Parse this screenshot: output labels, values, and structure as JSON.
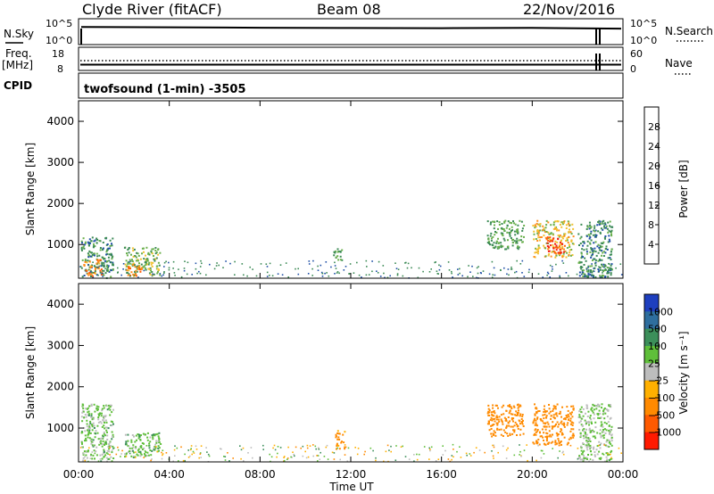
{
  "header": {
    "station": "Clyde River (fitACF)",
    "beam": "Beam 08",
    "date": "22/Nov/2016"
  },
  "summary": {
    "nsky_label": "N.Sky",
    "nsky_ticks": [
      "10^5",
      "10^0"
    ],
    "nsearch_label": "N.Search",
    "nsearch_ticks": [
      "10^5",
      "10^0"
    ],
    "freq_label_1": "Freq.",
    "freq_label_2": "[MHz]",
    "freq_ticks": [
      "18",
      "8"
    ],
    "nave_label": "Nave",
    "nave_ticks": [
      "60",
      "0"
    ],
    "cpid_label": "CPID",
    "cpid_value": "twofsound (1-min) -3505"
  },
  "axes": {
    "xlabel": "Time UT",
    "ylabel": "Slant Range [km]",
    "x_ticks": [
      "00:00",
      "04:00",
      "08:00",
      "12:00",
      "16:00",
      "20:00",
      "00:00"
    ],
    "y_ticks": [
      "1000",
      "2000",
      "3000",
      "4000"
    ]
  },
  "colorbars": {
    "power": {
      "title": "Power [dB]",
      "labels": [
        "4",
        "8",
        "12",
        "16",
        "20",
        "24",
        "28"
      ],
      "colors": [
        "#0033ff",
        "#1f4fa6",
        "#3b8a55",
        "#6ab04c",
        "#f2c230",
        "#ff8c1a",
        "#ff5a00",
        "#f21d10"
      ]
    },
    "velocity": {
      "title": "Velocity [m s⁻¹]",
      "labels": [
        "1000",
        "500",
        "100",
        "25",
        "−25",
        "−100",
        "−500",
        "−1000"
      ],
      "colors": [
        "#1e3fbf",
        "#2e6e9e",
        "#3c8f5a",
        "#5fbf3a",
        "#bdbdbd",
        "#ffb000",
        "#ff8a00",
        "#ff5a00",
        "#ff1a00"
      ]
    }
  },
  "chart_data": [
    {
      "type": "line",
      "title": "N.Sky / N.Search",
      "x": [
        "00:00",
        "04:00",
        "08:00",
        "12:00",
        "16:00",
        "20:00",
        "23:00"
      ],
      "series": [
        {
          "name": "N.Sky",
          "values": [
            2500,
            2200,
            1800,
            1600,
            1500,
            1700,
            1200
          ]
        }
      ]
    },
    {
      "type": "line",
      "title": "Freq. / Nave",
      "x": [
        "00:00",
        "04:00",
        "08:00",
        "12:00",
        "16:00",
        "20:00",
        "23:00"
      ],
      "series": [
        {
          "name": "Freq.",
          "values": [
            10.3,
            10.3,
            10.3,
            10.3,
            10.3,
            10.3,
            10.3
          ]
        }
      ]
    },
    {
      "type": "heatmap",
      "title": "Power [dB]",
      "xlabel": "Time UT",
      "ylabel": "Slant Range [km]",
      "xlim": [
        0,
        24
      ],
      "ylim": [
        180,
        4500
      ],
      "regions": [
        {
          "t": [
            0.1,
            1.5
          ],
          "range": [
            200,
            1200
          ],
          "value": 10
        },
        {
          "t": [
            0.2,
            1.0
          ],
          "range": [
            250,
            650
          ],
          "value": 22
        },
        {
          "t": [
            2.0,
            3.6
          ],
          "range": [
            250,
            950
          ],
          "value": 14
        },
        {
          "t": [
            2.1,
            2.8
          ],
          "range": [
            250,
            550
          ],
          "value": 24
        },
        {
          "t": [
            11.2,
            11.6
          ],
          "range": [
            600,
            1000
          ],
          "value": 12
        },
        {
          "t": [
            18.0,
            19.6
          ],
          "range": [
            900,
            1600
          ],
          "value": 12
        },
        {
          "t": [
            20.0,
            21.8
          ],
          "range": [
            700,
            1600
          ],
          "value": 18
        },
        {
          "t": [
            20.6,
            21.4
          ],
          "range": [
            800,
            1200
          ],
          "value": 28
        },
        {
          "t": [
            22.0,
            23.5
          ],
          "range": [
            200,
            1600
          ],
          "value": 10
        }
      ]
    },
    {
      "type": "heatmap",
      "title": "Velocity [m s⁻¹]",
      "xlabel": "Time UT",
      "ylabel": "Slant Range [km]",
      "xlim": [
        0,
        24
      ],
      "ylim": [
        180,
        4500
      ],
      "regions": [
        {
          "t": [
            0.1,
            1.5
          ],
          "range": [
            200,
            1600
          ],
          "value": 50
        },
        {
          "t": [
            2.0,
            3.6
          ],
          "range": [
            300,
            900
          ],
          "value": 60
        },
        {
          "t": [
            11.3,
            11.7
          ],
          "range": [
            500,
            1000
          ],
          "value": -150
        },
        {
          "t": [
            18.0,
            19.6
          ],
          "range": [
            800,
            1600
          ],
          "value": -200
        },
        {
          "t": [
            20.0,
            21.8
          ],
          "range": [
            600,
            1600
          ],
          "value": -300
        },
        {
          "t": [
            22.0,
            23.5
          ],
          "range": [
            200,
            1600
          ],
          "value": 40
        }
      ]
    }
  ]
}
